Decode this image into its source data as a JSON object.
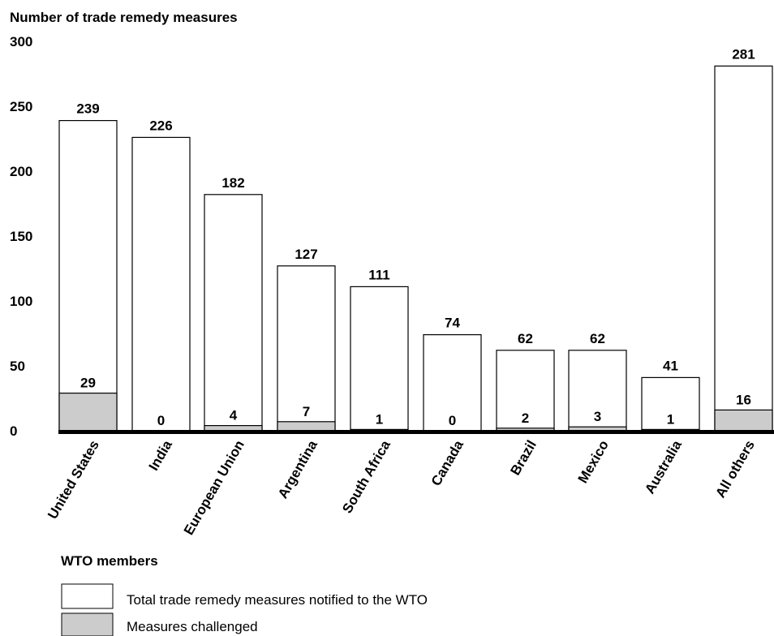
{
  "chart_data": {
    "type": "bar",
    "title": "Number of trade remedy measures",
    "xlabel": "WTO members",
    "ylabel": "",
    "ylim": [
      0,
      300
    ],
    "yticks": [
      0,
      50,
      100,
      150,
      200,
      250,
      300
    ],
    "categories": [
      "United States",
      "India",
      "European Union",
      "Argentina",
      "South Africa",
      "Canada",
      "Brazil",
      "Mexico",
      "Australia",
      "All others"
    ],
    "series": [
      {
        "name": "Total trade remedy measures notified to the WTO",
        "color": "#ffffff",
        "values": [
          239,
          226,
          182,
          127,
          111,
          74,
          62,
          62,
          41,
          281
        ]
      },
      {
        "name": "Measures challenged",
        "color": "#cccccc",
        "values": [
          29,
          0,
          4,
          7,
          1,
          0,
          2,
          3,
          1,
          16
        ]
      }
    ],
    "grid": false,
    "legend_position": "bottom-left",
    "layering": "overlay"
  }
}
